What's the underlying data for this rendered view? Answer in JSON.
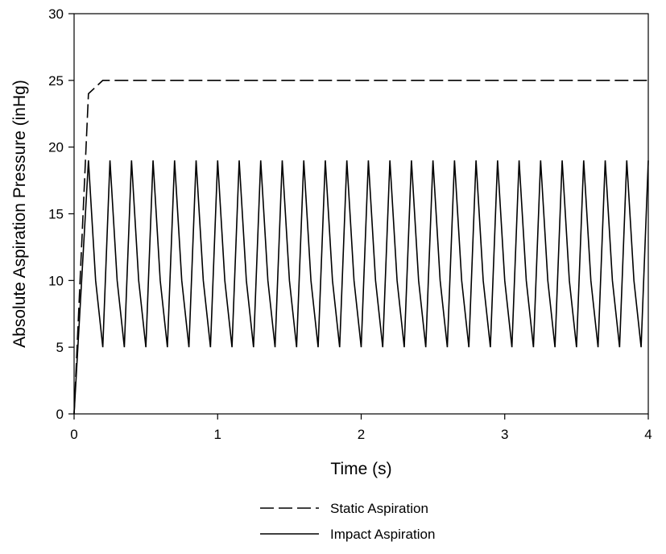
{
  "chart_data": {
    "type": "line",
    "xlabel": "Time (s)",
    "ylabel": "Absolute Aspiration Pressure (inHg)",
    "xlim": [
      0,
      4
    ],
    "ylim": [
      0,
      30
    ],
    "xticks": [
      "0",
      "1",
      "2",
      "3",
      "4"
    ],
    "yticks": [
      "0",
      "5",
      "10",
      "15",
      "20",
      "25",
      "30"
    ],
    "grid": false,
    "legend_position": "bottom-center",
    "series": [
      {
        "name": "Static Aspiration",
        "style": "dashed",
        "color": "#000000",
        "x": [
          0,
          0.1,
          0.2,
          4.0
        ],
        "y": [
          0,
          24,
          25,
          25
        ]
      },
      {
        "name": "Impact Aspiration",
        "style": "solid",
        "color": "#000000",
        "x": [
          0,
          0.1,
          0.15,
          0.2,
          0.25,
          0.3,
          0.35,
          0.4,
          0.45,
          0.5,
          0.55,
          0.6,
          0.65,
          0.7,
          0.75,
          0.8,
          0.85,
          0.9,
          0.95,
          1.0,
          1.05,
          1.1,
          1.15,
          1.2,
          1.25,
          1.3,
          1.35,
          1.4,
          1.45,
          1.5,
          1.55,
          1.6,
          1.65,
          1.7,
          1.75,
          1.8,
          1.85,
          1.9,
          1.95,
          2.0,
          2.05,
          2.1,
          2.15,
          2.2,
          2.25,
          2.3,
          2.35,
          2.4,
          2.45,
          2.5,
          2.55,
          2.6,
          2.65,
          2.7,
          2.75,
          2.8,
          2.85,
          2.9,
          2.95,
          3.0,
          3.05,
          3.1,
          3.15,
          3.2,
          3.25,
          3.3,
          3.35,
          3.4,
          3.45,
          3.5,
          3.55,
          3.6,
          3.65,
          3.7,
          3.75,
          3.8,
          3.85,
          3.9,
          3.95,
          4.0
        ],
        "y": [
          0,
          19,
          10,
          5,
          19,
          10,
          5,
          19,
          10,
          5,
          19,
          10,
          5,
          19,
          10,
          5,
          19,
          10,
          5,
          19,
          10,
          5,
          19,
          10,
          5,
          19,
          10,
          5,
          19,
          10,
          5,
          19,
          10,
          5,
          19,
          10,
          5,
          19,
          10,
          5,
          19,
          10,
          5,
          19,
          10,
          5,
          19,
          10,
          5,
          19,
          10,
          5,
          19,
          10,
          5,
          19,
          10,
          5,
          19,
          10,
          5,
          19,
          10,
          5,
          19,
          10,
          5,
          19,
          10,
          5,
          19,
          10,
          5,
          19,
          10,
          5,
          19,
          10,
          5,
          19
        ]
      }
    ]
  }
}
